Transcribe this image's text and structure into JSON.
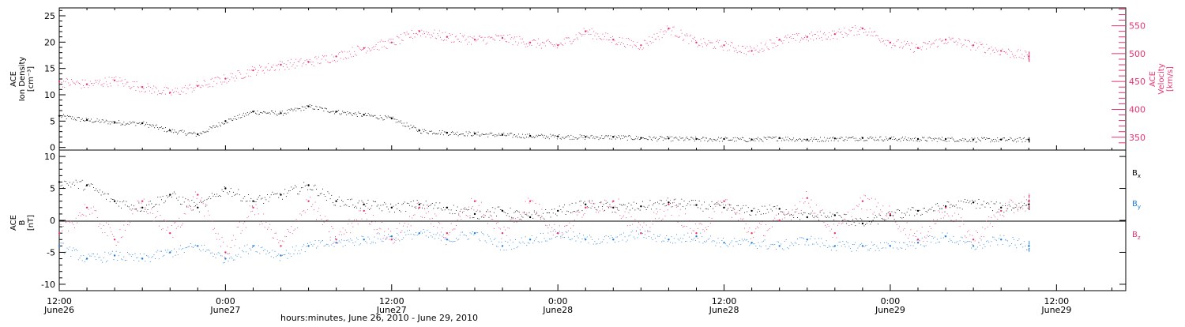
{
  "chart_data": [
    {
      "type": "scatter",
      "panel": "top",
      "ylabel_left": [
        "ACE",
        "Ion Density",
        "[cm⁻³]"
      ],
      "ylabel_right": [
        "ACE",
        "Velocity",
        "[km/s]"
      ],
      "ylim_left": [
        -0.5,
        26.5
      ],
      "ylim_right": [
        327,
        582
      ],
      "yticks_left": [
        "0",
        "5",
        "10",
        "15",
        "20",
        "25"
      ],
      "yticks_right": [
        "350",
        "400",
        "450",
        "500",
        "550"
      ],
      "series": [
        {
          "name": "Ion Density",
          "axis": "left",
          "color": "#000000",
          "points_hours": [
            0,
            2,
            4,
            6,
            8,
            10,
            12,
            14,
            16,
            18,
            20,
            22,
            24,
            26,
            28,
            30,
            32,
            34,
            36,
            38,
            40,
            42,
            44,
            46,
            48,
            50,
            52,
            54,
            56,
            58,
            60,
            62,
            64,
            66,
            68,
            70
          ],
          "values": [
            6,
            5.2,
            4.8,
            4.6,
            3.2,
            2.5,
            5,
            6.8,
            6.5,
            7.8,
            6.8,
            6.2,
            5.5,
            3.2,
            2.8,
            2.6,
            2.4,
            2.2,
            2.1,
            2.0,
            2.0,
            1.8,
            1.7,
            1.6,
            1.6,
            1.5,
            1.8,
            1.5,
            1.7,
            1.8,
            1.7,
            1.6,
            1.6,
            1.5,
            1.5,
            1.5
          ]
        },
        {
          "name": "Velocity",
          "axis": "right",
          "color": "#e8336b",
          "points_hours": [
            0,
            2,
            4,
            6,
            8,
            10,
            12,
            14,
            16,
            18,
            20,
            22,
            24,
            26,
            28,
            30,
            32,
            34,
            36,
            38,
            40,
            42,
            44,
            46,
            48,
            50,
            52,
            54,
            56,
            58,
            60,
            62,
            64,
            66,
            68,
            70
          ],
          "values": [
            450,
            445,
            452,
            440,
            430,
            442,
            455,
            470,
            480,
            485,
            495,
            510,
            520,
            540,
            530,
            525,
            528,
            520,
            515,
            540,
            525,
            515,
            545,
            520,
            515,
            505,
            525,
            530,
            535,
            545,
            520,
            510,
            525,
            515,
            505,
            495
          ]
        }
      ]
    },
    {
      "type": "scatter",
      "panel": "bottom",
      "ylabel": [
        "ACE",
        "B",
        "[nT]"
      ],
      "ylim": [
        -11,
        11
      ],
      "yticks": [
        "-10",
        "-5",
        "0",
        "5",
        "10"
      ],
      "legend": [
        "Bₓ",
        "Bᵧ",
        "B_z"
      ],
      "legend_position": "right",
      "series": [
        {
          "name": "Bx",
          "color": "#000000",
          "points_hours": [
            0,
            2,
            4,
            6,
            8,
            10,
            12,
            14,
            16,
            18,
            20,
            22,
            24,
            26,
            28,
            30,
            32,
            34,
            36,
            38,
            40,
            42,
            44,
            46,
            48,
            50,
            52,
            54,
            56,
            58,
            60,
            62,
            64,
            66,
            68,
            70
          ],
          "values": [
            6,
            5.5,
            3,
            2,
            4,
            2,
            5,
            3,
            4,
            5.5,
            3,
            2.5,
            2,
            2.5,
            2,
            1,
            1.5,
            0.5,
            1.5,
            2.5,
            2,
            2.2,
            2.8,
            2.4,
            2.0,
            1.5,
            1.8,
            0.5,
            0.8,
            -0.5,
            0.8,
            1.5,
            2.2,
            2.8,
            2.0,
            2.5
          ]
        },
        {
          "name": "By",
          "color": "#1e7bd6",
          "points_hours": [
            0,
            2,
            4,
            6,
            8,
            10,
            12,
            14,
            16,
            18,
            20,
            22,
            24,
            26,
            28,
            30,
            32,
            34,
            36,
            38,
            40,
            42,
            44,
            46,
            48,
            50,
            52,
            54,
            56,
            58,
            60,
            62,
            64,
            66,
            68,
            70
          ],
          "values": [
            -4,
            -6,
            -5.5,
            -6,
            -5,
            -4,
            -6,
            -4,
            -5.5,
            -4,
            -3.5,
            -3,
            -2.5,
            -2,
            -3,
            -2,
            -4,
            -3,
            -2,
            -3,
            -3,
            -2,
            -3,
            -2.5,
            -3.5,
            -3.5,
            -4,
            -3,
            -4,
            -4,
            -4,
            -3.5,
            -2.5,
            -4,
            -3,
            -4
          ]
        },
        {
          "name": "Bz",
          "color": "#e8336b",
          "points_hours": [
            0,
            2,
            4,
            6,
            8,
            10,
            12,
            14,
            16,
            18,
            20,
            22,
            24,
            26,
            28,
            30,
            32,
            34,
            36,
            38,
            40,
            42,
            44,
            46,
            48,
            50,
            52,
            54,
            56,
            58,
            60,
            62,
            64,
            66,
            68,
            70
          ],
          "values": [
            -2,
            2,
            -3,
            3,
            -2,
            4,
            -5,
            2,
            -4,
            3,
            -3,
            1.5,
            -3,
            2,
            -2,
            3,
            -2,
            3,
            -2,
            2,
            3,
            -2,
            2.5,
            -2,
            3,
            -2,
            0,
            3.5,
            -2,
            3,
            1,
            -3,
            2,
            -3,
            1.5,
            3
          ]
        }
      ]
    }
  ],
  "x_axis": {
    "title": "hours:minutes, June 26, 2010 - June 29, 2010",
    "start_hour": 0,
    "end_hour": 77,
    "ticks": [
      {
        "hour": 0,
        "time": "12:00",
        "day": "June26"
      },
      {
        "hour": 12,
        "time": "0:00",
        "day": "June27"
      },
      {
        "hour": 24,
        "time": "12:00",
        "day": "June27"
      },
      {
        "hour": 36,
        "time": "0:00",
        "day": "June28"
      },
      {
        "hour": 48,
        "time": "12:00",
        "day": "June28"
      },
      {
        "hour": 60,
        "time": "0:00",
        "day": "June29"
      },
      {
        "hour": 72,
        "time": "12:00",
        "day": "June29"
      }
    ]
  },
  "legend_labels": {
    "bx": "B",
    "bx_sub": "x",
    "by": "B",
    "by_sub": "y",
    "bz": "B",
    "bz_sub": "z"
  },
  "colors": {
    "black": "#000000",
    "pink": "#e8336b",
    "blue": "#1e7bd6"
  }
}
